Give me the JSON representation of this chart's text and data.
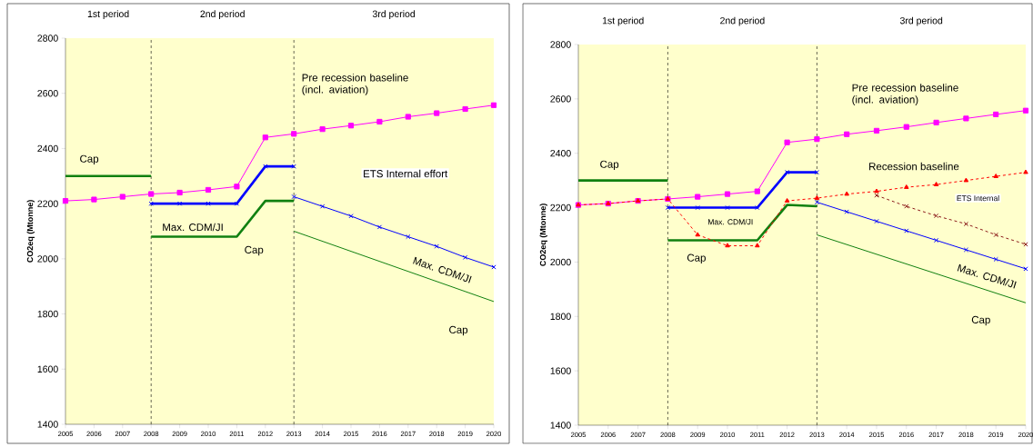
{
  "chart_data": [
    {
      "type": "line",
      "ylabel": "CO2eq (Mtonne)",
      "xlim": [
        2005,
        2020
      ],
      "ylim": [
        1400,
        2800
      ],
      "xticks": [
        2005,
        2006,
        2007,
        2008,
        2009,
        2010,
        2011,
        2012,
        2013,
        2014,
        2015,
        2016,
        2017,
        2018,
        2019,
        2020
      ],
      "yticks": [
        1400,
        1600,
        1800,
        2000,
        2200,
        2400,
        2600,
        2800
      ],
      "series": [
        {
          "x": [
            2005,
            2006,
            2007,
            2008,
            2009,
            2010,
            2011,
            2012,
            2013,
            2014,
            2015,
            2016,
            2017,
            2018,
            2019,
            2020
          ],
          "values": [
            2210,
            2215,
            2225,
            2235,
            2240,
            2250,
            2262,
            2440,
            2453,
            2470,
            2483,
            2497,
            2515,
            2528,
            2543,
            2557
          ],
          "color": "#ff00ff",
          "marker": "square"
        },
        {
          "x": [
            2008,
            2009,
            2010,
            2011,
            2012,
            2013
          ],
          "values": [
            2200,
            2200,
            2200,
            2200,
            2335,
            2335
          ],
          "color": "#0000ff",
          "marker": "cross"
        },
        {
          "x": [
            2013,
            2014,
            2015,
            2016,
            2017,
            2018,
            2019,
            2020
          ],
          "values": [
            2225,
            2190,
            2155,
            2115,
            2080,
            2045,
            2005,
            1970
          ],
          "color": "#0000ff",
          "marker": "cross"
        },
        {
          "x": [
            2005,
            2008
          ],
          "values": [
            2300,
            2300
          ],
          "color": "#108010",
          "marker": "none"
        },
        {
          "x": [
            2008,
            2011,
            2012,
            2013
          ],
          "values": [
            2080,
            2080,
            2210,
            2210
          ],
          "color": "#108010",
          "marker": "none"
        },
        {
          "x": [
            2013,
            2020
          ],
          "values": [
            2100,
            1845
          ],
          "color": "#108010",
          "marker": "none"
        }
      ],
      "ref_lines": [
        {
          "axis": "x",
          "value": 2008,
          "line_style": "dashed"
        },
        {
          "axis": "x",
          "value": 2013,
          "line_style": "dashed"
        }
      ],
      "annotations": [
        "1st period",
        "2nd period",
        "3rd period",
        "Pre recession baseline (incl. aviation)",
        "Cap",
        "Max. CDM/JI",
        "Cap",
        "ETS Internal effort",
        "Max. CDM/JI",
        "Cap"
      ]
    },
    {
      "type": "line",
      "ylabel": "CO2eq (Mtonne)",
      "xlim": [
        2005,
        2020
      ],
      "ylim": [
        1400,
        2800
      ],
      "xticks": [
        2005,
        2006,
        2007,
        2008,
        2009,
        2010,
        2011,
        2012,
        2013,
        2014,
        2015,
        2016,
        2017,
        2018,
        2019,
        2020
      ],
      "yticks": [
        1400,
        1600,
        1800,
        2000,
        2200,
        2400,
        2600,
        2800
      ],
      "series": [
        {
          "x": [
            2005,
            2006,
            2007,
            2008,
            2009,
            2010,
            2011,
            2012,
            2013,
            2014,
            2015,
            2016,
            2017,
            2018,
            2019,
            2020
          ],
          "values": [
            2210,
            2215,
            2225,
            2232,
            2240,
            2250,
            2260,
            2440,
            2452,
            2470,
            2483,
            2497,
            2513,
            2528,
            2543,
            2557
          ],
          "color": "#ff00ff",
          "marker": "square"
        },
        {
          "x": [
            2008,
            2009,
            2010,
            2011,
            2012,
            2013
          ],
          "values": [
            2200,
            2200,
            2200,
            2200,
            2330,
            2330
          ],
          "color": "#0000ff",
          "marker": "cross"
        },
        {
          "x": [
            2013,
            2014,
            2015,
            2016,
            2017,
            2018,
            2019,
            2020
          ],
          "values": [
            2220,
            2185,
            2150,
            2115,
            2080,
            2045,
            2010,
            1975
          ],
          "color": "#0000ff",
          "marker": "cross"
        },
        {
          "x": [
            2005,
            2008
          ],
          "values": [
            2300,
            2300
          ],
          "color": "#108010",
          "marker": "none"
        },
        {
          "x": [
            2008,
            2011,
            2012,
            2013
          ],
          "values": [
            2080,
            2080,
            2210,
            2205
          ],
          "color": "#108010",
          "marker": "none"
        },
        {
          "x": [
            2013,
            2020
          ],
          "values": [
            2100,
            1850
          ],
          "color": "#108010",
          "marker": "none"
        },
        {
          "x": [
            2005,
            2006,
            2007,
            2008,
            2009,
            2010,
            2011,
            2012,
            2013,
            2014,
            2015,
            2016,
            2017,
            2018,
            2019,
            2020
          ],
          "values": [
            2210,
            2215,
            2225,
            2232,
            2100,
            2060,
            2060,
            2225,
            2235,
            2250,
            2260,
            2275,
            2285,
            2300,
            2315,
            2330
          ],
          "color": "#ff0000",
          "marker": "triangle",
          "line_style": "dashed"
        },
        {
          "x": [
            2015,
            2016,
            2017,
            2018,
            2019,
            2020
          ],
          "values": [
            2245,
            2205,
            2170,
            2140,
            2100,
            2065
          ],
          "color": "#8b1a1a",
          "marker": "cross",
          "line_style": "dashed"
        }
      ],
      "ref_lines": [
        {
          "axis": "x",
          "value": 2008,
          "line_style": "dashed"
        },
        {
          "axis": "x",
          "value": 2013,
          "line_style": "dashed"
        }
      ],
      "annotations": [
        "1st period",
        "2nd period",
        "3rd period",
        "Pre recession baseline (incl. aviation)",
        "Cap",
        "Recession baseline",
        "ETS Internal",
        "Max. CDM/JI",
        "Cap",
        "Max. CDM/JI",
        "Cap"
      ]
    }
  ]
}
